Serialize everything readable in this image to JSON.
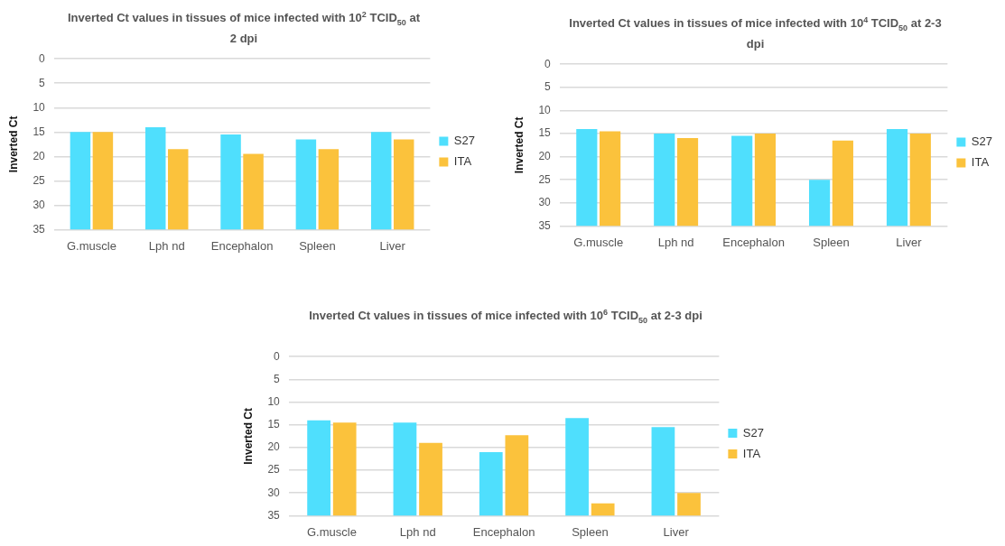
{
  "chart_data": [
    {
      "type": "bar",
      "title": "Inverted Ct values in tissues of mice infected with 10$^{2}$ TCID$_{50}$ at 2 dpi",
      "ylabel": "Inverted Ct",
      "categories": [
        "G.muscle",
        "Lph nd",
        "Encephalon",
        "Spleen",
        "Liver"
      ],
      "series": [
        {
          "name": "S27",
          "color": "#4fdffd",
          "base": [
            35,
            35,
            35,
            35,
            35
          ],
          "values": [
            -20,
            -21,
            -19.5,
            -18.5,
            -20
          ]
        },
        {
          "name": "ITA",
          "color": "#fbc23c",
          "base": [
            35,
            35,
            35,
            35,
            35
          ],
          "values": [
            -20,
            -16.5,
            -15.5,
            -16.5,
            -18.5
          ]
        }
      ],
      "ylim": [
        35,
        0
      ],
      "yticks": [
        0,
        5,
        10,
        15,
        20,
        25,
        30,
        35
      ],
      "grid": "y",
      "legend": "right"
    },
    {
      "type": "bar",
      "title": "Inverted Ct values in tissues of mice infected with 10$^{4}$ TCID$_{50}$ at 2-3 dpi",
      "ylabel": "Inverted Ct",
      "categories": [
        "G.muscle",
        "Lph nd",
        "Encephalon",
        "Spleen",
        "Liver"
      ],
      "series": [
        {
          "name": "S27",
          "color": "#4fdffd",
          "base": [
            35,
            35,
            35,
            35,
            35
          ],
          "values": [
            -21,
            -20,
            -19.5,
            -10,
            -21
          ]
        },
        {
          "name": "ITA",
          "color": "#fbc23c",
          "base": [
            35,
            35,
            35,
            35,
            35
          ],
          "values": [
            -20.5,
            -19,
            -20,
            -18.5,
            -20
          ]
        }
      ],
      "ylim": [
        35,
        0
      ],
      "yticks": [
        0,
        5,
        10,
        15,
        20,
        25,
        30,
        35
      ],
      "grid": "y",
      "legend": "right"
    },
    {
      "type": "bar",
      "title": "Inverted Ct values in tissues of mice infected with 10$^{6}$ TCID$_{50}$ at 2-3 dpi",
      "ylabel": "Inverted Ct",
      "categories": [
        "G.muscle",
        "Lph nd",
        "Encephalon",
        "Spleen",
        "Liver"
      ],
      "series": [
        {
          "name": "S27",
          "color": "#4fdffd",
          "base": [
            35,
            35,
            35,
            35,
            35
          ],
          "values": [
            -21,
            -20.5,
            -14,
            -21.5,
            -19.5
          ]
        },
        {
          "name": "ITA",
          "color": "#fbc23c",
          "base": [
            35,
            35,
            35,
            35,
            35
          ],
          "values": [
            -20.5,
            -16,
            -17.7,
            -2.7,
            -5
          ]
        }
      ],
      "ylim": [
        35,
        0
      ],
      "yticks": [
        0,
        5,
        10,
        15,
        20,
        25,
        30,
        35
      ],
      "grid": "y",
      "legend": "right"
    }
  ]
}
